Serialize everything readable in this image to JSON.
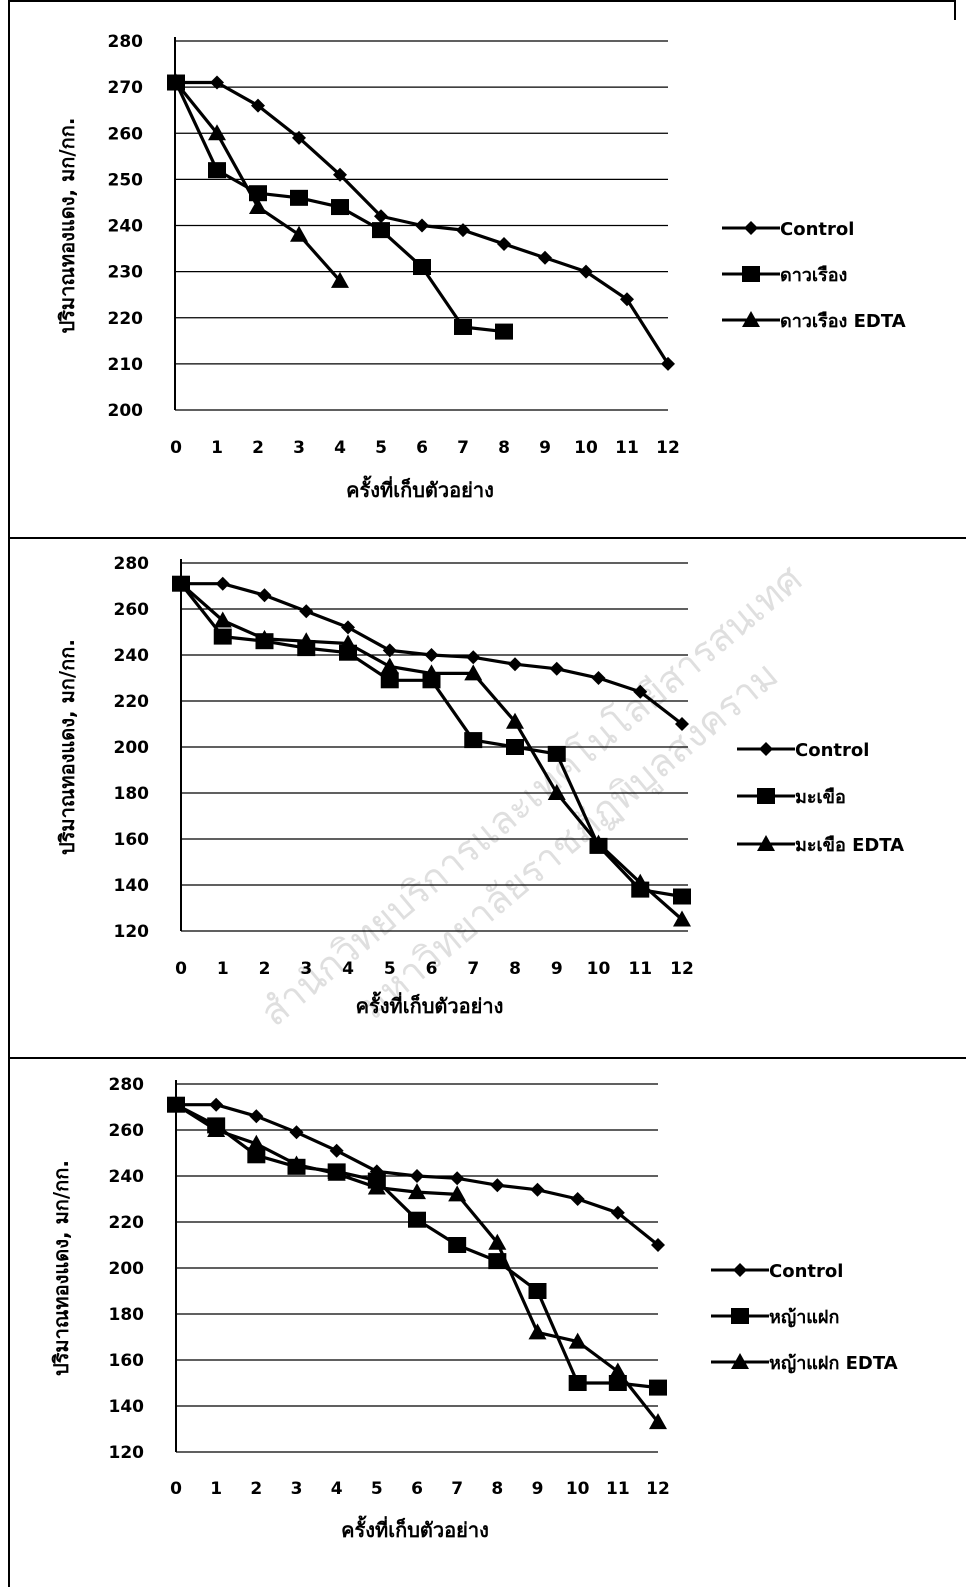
{
  "chart_data": [
    {
      "type": "line",
      "ylabel": "ปริมาณทองแดง, มก/กก.",
      "xlabel": "ครั้งที่เก็บตัวอย่าง",
      "x": [
        0,
        1,
        2,
        3,
        4,
        5,
        6,
        7,
        8,
        9,
        10,
        11,
        12
      ],
      "ylim": [
        200,
        280
      ],
      "yticks": [
        200,
        210,
        220,
        230,
        240,
        250,
        260,
        270,
        280
      ],
      "legend_position": "right",
      "grid": "horizontal",
      "series": [
        {
          "name": "Control",
          "marker": "diamond",
          "values": [
            271,
            271,
            266,
            259,
            251,
            242,
            240,
            239,
            236,
            233,
            230,
            224,
            210
          ]
        },
        {
          "name": "ดาวเรือง",
          "marker": "square",
          "values": [
            271,
            252,
            247,
            246,
            244,
            239,
            231,
            218,
            217,
            null,
            null,
            null,
            null
          ]
        },
        {
          "name": "ดาวเรือง EDTA",
          "marker": "triangle",
          "values": [
            271,
            260,
            244,
            238,
            228,
            null,
            null,
            null,
            null,
            null,
            null,
            null,
            null
          ]
        }
      ]
    },
    {
      "type": "line",
      "ylabel": "ปริมาณทองแดง, มก/กก.",
      "xlabel": "ครั้งที่เก็บตัวอย่าง",
      "x": [
        0,
        1,
        2,
        3,
        4,
        5,
        6,
        7,
        8,
        9,
        10,
        11,
        12
      ],
      "ylim": [
        120,
        280
      ],
      "yticks": [
        120,
        140,
        160,
        180,
        200,
        220,
        240,
        260,
        280
      ],
      "legend_position": "right",
      "grid": "horizontal",
      "series": [
        {
          "name": "Control",
          "marker": "diamond",
          "values": [
            271,
            271,
            266,
            259,
            252,
            242,
            240,
            239,
            236,
            234,
            230,
            224,
            210
          ]
        },
        {
          "name": "มะเขือ",
          "marker": "square",
          "values": [
            271,
            248,
            246,
            243,
            241,
            229,
            229,
            203,
            200,
            197,
            157,
            138,
            135
          ]
        },
        {
          "name": "มะเขือ EDTA",
          "marker": "triangle",
          "values": [
            271,
            255,
            247,
            246,
            245,
            235,
            232,
            232,
            211,
            180,
            158,
            141,
            125
          ]
        }
      ]
    },
    {
      "type": "line",
      "ylabel": "ปริมาณทองแดง, มก/กก.",
      "xlabel": "ครั้งที่เก็บตัวอย่าง",
      "x": [
        0,
        1,
        2,
        3,
        4,
        5,
        6,
        7,
        8,
        9,
        10,
        11,
        12
      ],
      "ylim": [
        120,
        280
      ],
      "yticks": [
        120,
        140,
        160,
        180,
        200,
        220,
        240,
        260,
        280
      ],
      "legend_position": "right",
      "grid": "horizontal",
      "series": [
        {
          "name": "Control",
          "marker": "diamond",
          "values": [
            271,
            271,
            266,
            259,
            251,
            242,
            240,
            239,
            236,
            234,
            230,
            224,
            210
          ]
        },
        {
          "name": "หญ้าแฝก",
          "marker": "square",
          "values": [
            271,
            262,
            249,
            244,
            242,
            238,
            221,
            210,
            203,
            190,
            150,
            150,
            148
          ]
        },
        {
          "name": "หญ้าแฝก EDTA",
          "marker": "triangle",
          "values": [
            271,
            260,
            254,
            245,
            241,
            235,
            233,
            232,
            211,
            172,
            168,
            155,
            133
          ]
        }
      ]
    }
  ],
  "watermark": {
    "line1": "สำนักวิทยบริการและเทคโนโลยีสารสนเทศ",
    "line2": "มหาวิทยาลัยราชภัฏพิบูลสงคราม"
  }
}
